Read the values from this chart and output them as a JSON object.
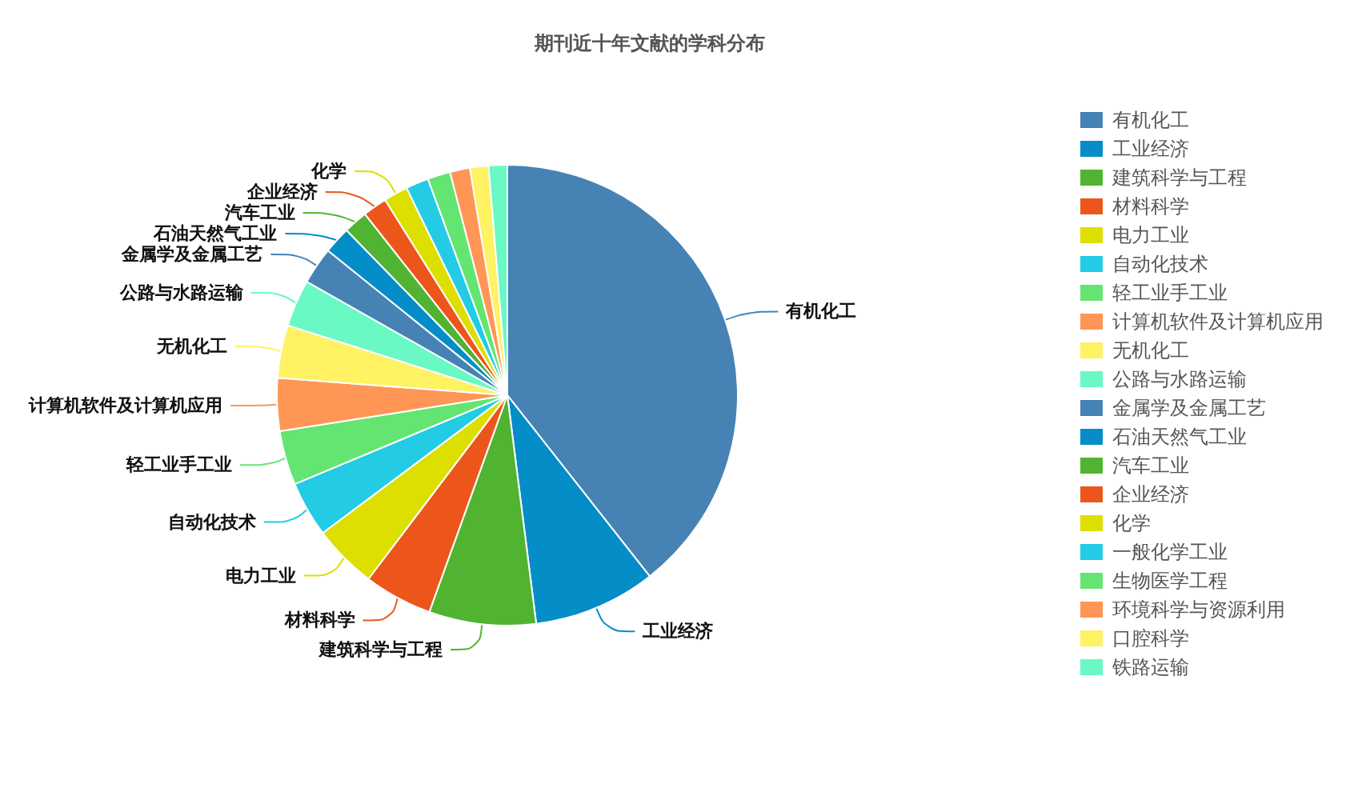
{
  "chart_data": {
    "type": "pie",
    "title": "期刊近十年文献的学科分布",
    "categories": [
      "有机化工",
      "工业经济",
      "建筑科学与工程",
      "材料科学",
      "电力工业",
      "自动化技术",
      "轻工业手工业",
      "计算机软件及计算机应用",
      "无机化工",
      "公路与水路运输",
      "金属学及金属工艺",
      "石油天然气工业",
      "汽车工业",
      "企业经济",
      "化学",
      "一般化学工业",
      "生物医学工程",
      "环境科学与资源利用",
      "口腔科学",
      "铁路运输"
    ],
    "values": [
      39.4,
      8.6,
      7.5,
      4.8,
      4.5,
      3.9,
      3.8,
      3.7,
      3.7,
      3.3,
      2.6,
      1.9,
      1.7,
      1.7,
      1.7,
      1.6,
      1.6,
      1.4,
      1.3,
      1.3
    ],
    "colors": [
      "#4682b4",
      "#058dc7",
      "#50b432",
      "#ed561b",
      "#dddf00",
      "#24cbe5",
      "#64e572",
      "#ff9655",
      "#fff263",
      "#6af9c4",
      "#4682b4",
      "#058dc7",
      "#50b432",
      "#ed561b",
      "#dddf00",
      "#24cbe5",
      "#64e572",
      "#ff9655",
      "#fff263",
      "#6af9c4"
    ],
    "legend": "right"
  }
}
